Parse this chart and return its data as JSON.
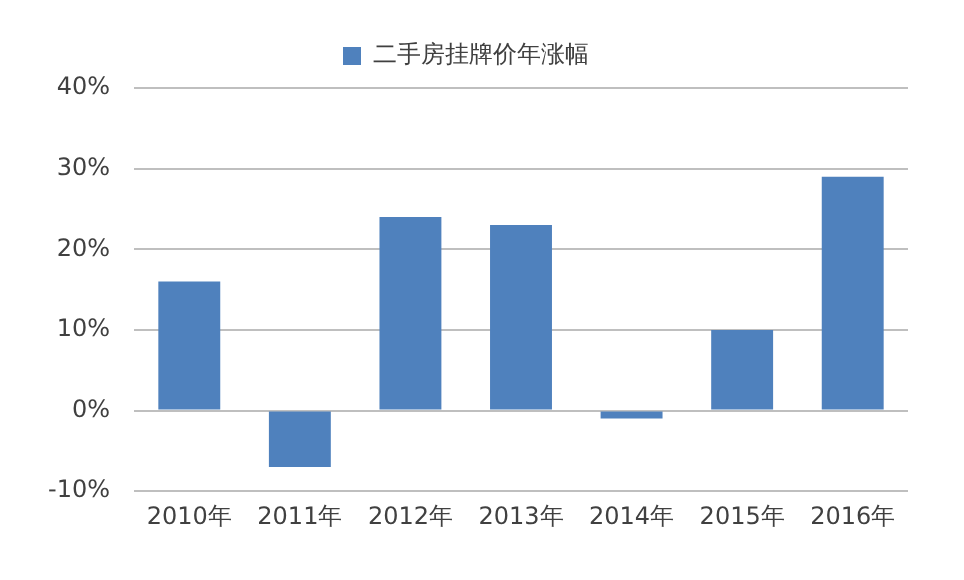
{
  "chart_data": {
    "type": "bar",
    "categories": [
      "2010年",
      "2011年",
      "2012年",
      "2013年",
      "2014年",
      "2015年",
      "2016年"
    ],
    "series": [
      {
        "name": "二手房挂牌价年涨幅",
        "color": "#4f81bd",
        "values": [
          16,
          -7,
          24,
          23,
          -1,
          10,
          29
        ]
      }
    ],
    "ylim": [
      -10,
      40
    ],
    "yticks": [
      {
        "value": -10,
        "label": "-10%"
      },
      {
        "value": 0,
        "label": "0%"
      },
      {
        "value": 10,
        "label": "10%"
      },
      {
        "value": 20,
        "label": "20%"
      },
      {
        "value": 30,
        "label": "30%"
      },
      {
        "value": 40,
        "label": "40%"
      }
    ],
    "grid": "y",
    "legend": "top"
  }
}
